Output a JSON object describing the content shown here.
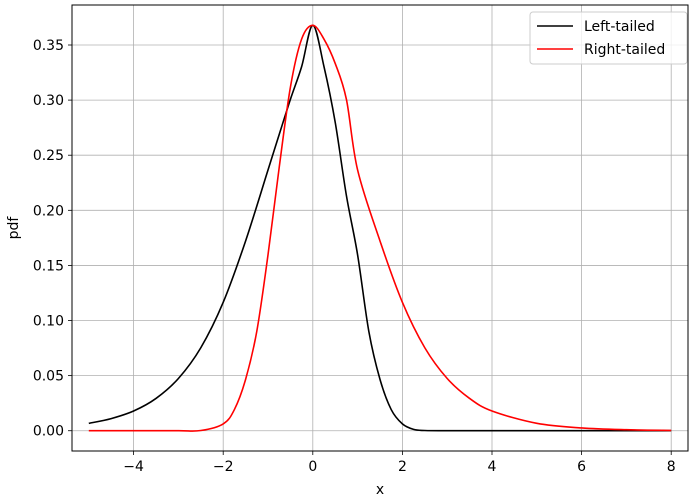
{
  "chart_data": {
    "type": "line",
    "title": "",
    "xlabel": "x",
    "ylabel": "pdf",
    "xlim": [
      -5.375,
      8.375
    ],
    "ylim": [
      -0.0184,
      0.3863
    ],
    "grid": true,
    "legend_position": "top-right",
    "x_ticks": [
      -4,
      -2,
      0,
      2,
      4,
      6,
      8
    ],
    "x_tick_labels": [
      "−4",
      "−2",
      "0",
      "2",
      "4",
      "6",
      "8"
    ],
    "y_ticks": [
      0.0,
      0.05,
      0.1,
      0.15,
      0.2,
      0.25,
      0.3,
      0.35
    ],
    "y_tick_labels": [
      "0.00",
      "0.05",
      "0.10",
      "0.15",
      "0.20",
      "0.25",
      "0.30",
      "0.35"
    ],
    "series": [
      {
        "name": "Left-tailed",
        "color": "#000000",
        "x": [
          -5.0,
          -4.5,
          -4.0,
          -3.5,
          -3.0,
          -2.5,
          -2.0,
          -1.5,
          -1.0,
          -0.75,
          -0.5,
          -0.25,
          0.0,
          0.25,
          0.5,
          0.75,
          1.0,
          1.25,
          1.5,
          1.75,
          2.0,
          2.25,
          2.5,
          3.0,
          4.0,
          5.0,
          6.0,
          7.0,
          8.0
        ],
        "y": [
          0.0067,
          0.011,
          0.0179,
          0.0293,
          0.0474,
          0.0753,
          0.1165,
          0.1722,
          0.2366,
          0.2688,
          0.3007,
          0.3303,
          0.3679,
          0.3303,
          0.2799,
          0.2134,
          0.1596,
          0.0903,
          0.0466,
          0.0192,
          0.0062,
          0.0012,
          0.0002,
          0.0,
          0.0,
          0.0,
          0.0,
          0.0,
          0.0
        ]
      },
      {
        "name": "Right-tailed",
        "color": "#ff0000",
        "x": [
          -5.0,
          -4.0,
          -3.0,
          -2.5,
          -2.0,
          -1.75,
          -1.5,
          -1.25,
          -1.0,
          -0.75,
          -0.5,
          -0.25,
          0.0,
          0.25,
          0.5,
          0.75,
          1.0,
          1.5,
          2.0,
          2.5,
          3.0,
          3.5,
          4.0,
          5.0,
          6.0,
          7.0,
          8.0
        ],
        "y": [
          0.0,
          0.0,
          0.0,
          0.0002,
          0.0062,
          0.0192,
          0.0466,
          0.0903,
          0.1596,
          0.2389,
          0.3117,
          0.3553,
          0.3679,
          0.3553,
          0.3333,
          0.3007,
          0.2366,
          0.1722,
          0.1165,
          0.0753,
          0.0474,
          0.0293,
          0.0179,
          0.0067,
          0.0025,
          0.0009,
          0.0003
        ]
      }
    ]
  }
}
